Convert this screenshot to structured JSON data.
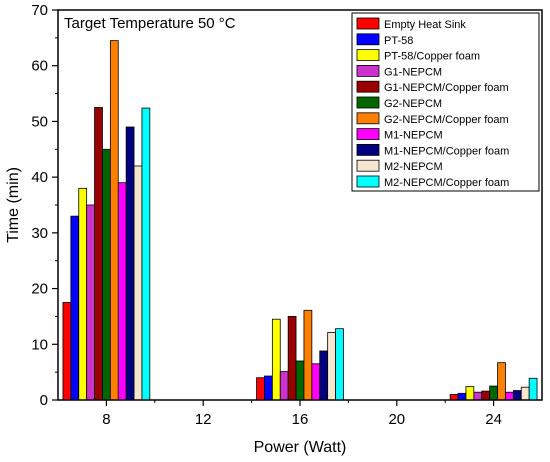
{
  "chart_data": {
    "type": "bar",
    "title": "Target Temperature 50 °C",
    "xlabel": "Power (Watt)",
    "ylabel": "Time (min)",
    "xlim": [
      6,
      26
    ],
    "ylim": [
      0,
      70
    ],
    "x_ticks": [
      8,
      12,
      16,
      20,
      24
    ],
    "y_ticks": [
      0,
      10,
      20,
      30,
      40,
      50,
      60,
      70
    ],
    "categories": [
      8,
      16,
      24
    ],
    "legend_position": "top-right",
    "series": [
      {
        "name": "Empty Heat Sink",
        "color": "#ff0000",
        "values": [
          17.5,
          4.0,
          1.0
        ]
      },
      {
        "name": "PT-58",
        "color": "#0000ff",
        "values": [
          33,
          4.3,
          1.2
        ]
      },
      {
        "name": "PT-58/Copper foam",
        "color": "#ffff00",
        "values": [
          38,
          14.5,
          2.4
        ]
      },
      {
        "name": "G1-NEPCM",
        "color": "#cc33cc",
        "values": [
          35,
          5.1,
          1.4
        ]
      },
      {
        "name": "G1-NEPCM/Copper foam",
        "color": "#990000",
        "values": [
          52.5,
          15.0,
          1.6
        ]
      },
      {
        "name": "G2-NEPCM",
        "color": "#006600",
        "values": [
          45,
          7.0,
          2.5
        ]
      },
      {
        "name": "G2-NEPCM/Copper foam",
        "color": "#ff8000",
        "values": [
          64.5,
          16.1,
          6.7
        ]
      },
      {
        "name": "M1-NEPCM",
        "color": "#ff00ff",
        "values": [
          39,
          6.5,
          1.4
        ]
      },
      {
        "name": "M1-NEPCM/Copper foam",
        "color": "#000080",
        "values": [
          49,
          8.8,
          1.7
        ]
      },
      {
        "name": "M2-NEPCM",
        "color": "#f5e6d0",
        "values": [
          42,
          12.1,
          2.3
        ]
      },
      {
        "name": "M2-NEPCM/Copper foam",
        "color": "#00ffff",
        "values": [
          52.4,
          12.8,
          3.9
        ]
      }
    ]
  }
}
